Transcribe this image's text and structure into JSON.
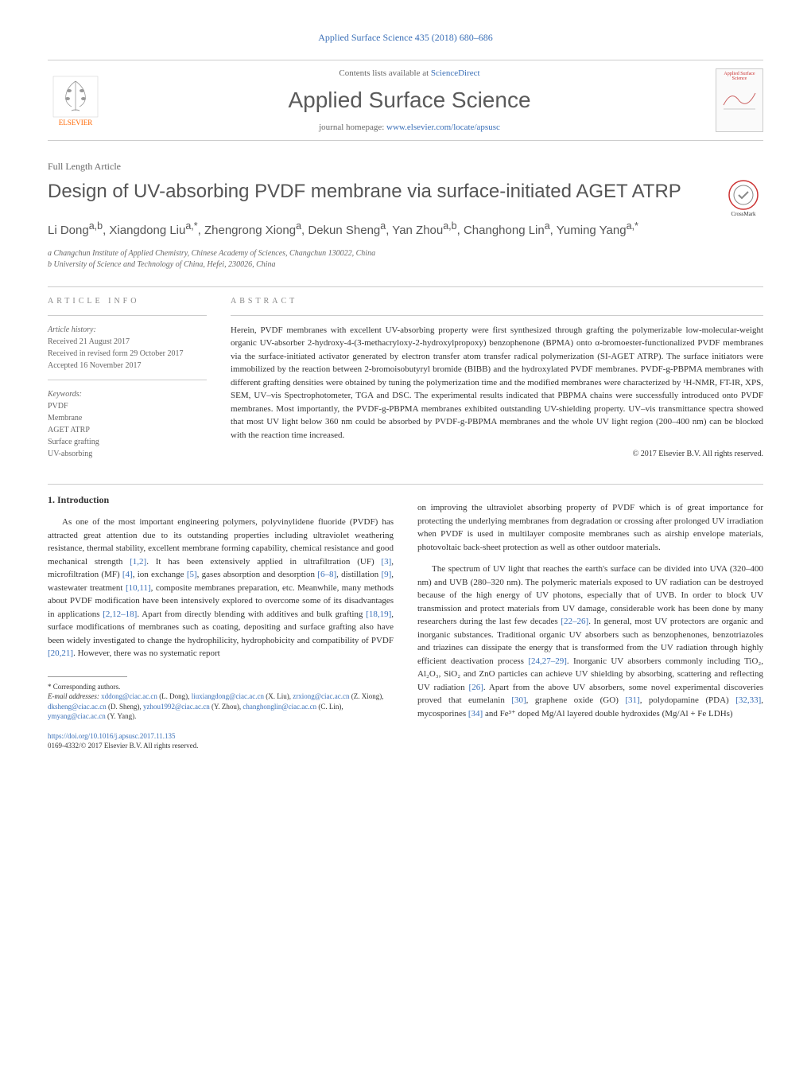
{
  "colors": {
    "link": "#3a6fb7",
    "text": "#333333",
    "muted": "#666666",
    "elsevier_orange": "#ff6600",
    "cover_red": "#cc3333",
    "background": "#ffffff",
    "border": "#cccccc"
  },
  "top_header": "Applied Surface Science 435 (2018) 680–686",
  "journal_box": {
    "contents_line_pre": "Contents lists available at ",
    "contents_line_link": "ScienceDirect",
    "title": "Applied Surface Science",
    "homepage_pre": "journal homepage: ",
    "homepage_url": "www.elsevier.com/locate/apsusc",
    "publisher": "ELSEVIER",
    "cover_title": "Applied Surface Science"
  },
  "article_type": "Full Length Article",
  "article_title": "Design of UV-absorbing PVDF membrane via surface-initiated AGET ATRP",
  "crossmark_label": "CrossMark",
  "authors_html": "Li Dong<sup>a,b</sup>, Xiangdong Liu<sup>a,*</sup>, Zhengrong Xiong<sup>a</sup>, Dekun Sheng<sup>a</sup>, Yan Zhou<sup>a,b</sup>, Changhong Lin<sup>a</sup>, Yuming Yang<sup>a,*</sup>",
  "affiliations": [
    "a Changchun Institute of Applied Chemistry, Chinese Academy of Sciences, Changchun 130022, China",
    "b University of Science and Technology of China, Hefei, 230026, China"
  ],
  "info_label": "ARTICLE INFO",
  "abstract_label": "ABSTRACT",
  "article_info": {
    "history_head": "Article history:",
    "history": [
      "Received 21 August 2017",
      "Received in revised form 29 October 2017",
      "Accepted 16 November 2017"
    ],
    "keywords_head": "Keywords:",
    "keywords": [
      "PVDF",
      "Membrane",
      "AGET ATRP",
      "Surface grafting",
      "UV-absorbing"
    ]
  },
  "abstract_text": "Herein, PVDF membranes with excellent UV-absorbing property were first synthesized through grafting the polymerizable low-molecular-weight organic UV-absorber 2-hydroxy-4-(3-methacryloxy-2-hydroxylpropoxy) benzophenone (BPMA) onto α-bromoester-functionalized PVDF membranes via the surface-initiated activator generated by electron transfer atom transfer radical polymerization (SI-AGET ATRP). The surface initiators were immobilized by the reaction between 2-bromoisobutyryl bromide (BIBB) and the hydroxylated PVDF membranes. PVDF-g-PBPMA membranes with different grafting densities were obtained by tuning the polymerization time and the modified membranes were characterized by ¹H-NMR, FT-IR, XPS, SEM, UV–vis Spectrophotometer, TGA and DSC. The experimental results indicated that PBPMA chains were successfully introduced onto PVDF membranes. Most importantly, the PVDF-g-PBPMA membranes exhibited outstanding UV-shielding property. UV–vis transmittance spectra showed that most UV light below 360 nm could be absorbed by PVDF-g-PBPMA membranes and the whole UV light region (200–400 nm) can be blocked with the reaction time increased.",
  "abstract_copyright": "© 2017 Elsevier B.V. All rights reserved.",
  "body": {
    "heading": "1. Introduction",
    "col1_p1": "As one of the most important engineering polymers, polyvinylidene fluoride (PVDF) has attracted great attention due to its outstanding properties including ultraviolet weathering resistance, thermal stability, excellent membrane forming capability, chemical resistance and good mechanical strength [1,2]. It has been extensively applied in ultrafiltration (UF) [3], microfiltration (MF) [4], ion exchange [5], gases absorption and desorption [6–8], distillation [9], wastewater treatment [10,11], composite membranes preparation, etc. Meanwhile, many methods about PVDF modification have been intensively explored to overcome some of its disadvantages in applications [2,12–18]. Apart from directly blending with additives and bulk grafting [18,19], surface modifications of membranes such as coating, depositing and surface grafting also have been widely investigated to change the hydrophilicity, hydrophobicity and compatibility of PVDF [20,21]. However, there was no systematic report",
    "col2_p1": "on improving the ultraviolet absorbing property of PVDF which is of great importance for protecting the underlying membranes from degradation or crossing after prolonged UV irradiation when PVDF is used in multilayer composite membranes such as airship envelope materials, photovoltaic back-sheet protection as well as other outdoor materials.",
    "col2_p2": "The spectrum of UV light that reaches the earth's surface can be divided into UVA (320–400 nm) and UVB (280–320 nm). The polymeric materials exposed to UV radiation can be destroyed because of the high energy of UV photons, especially that of UVB. In order to block UV transmission and protect materials from UV damage, considerable work has been done by many researchers during the last few decades [22–26]. In general, most UV protectors are organic and inorganic substances. Traditional organic UV absorbers such as benzophenones, benzotriazoles and triazines can dissipate the energy that is transformed from the UV radiation through highly efficient deactivation process [24,27–29]. Inorganic UV absorbers commonly including TiO₂, Al₂O₃, SiO₂ and ZnO particles can achieve UV shielding by absorbing, scattering and reflecting UV radiation [26]. Apart from the above UV absorbers, some novel experimental discoveries proved that eumelanin [30], graphene oxide (GO) [31], polydopamine (PDA) [32,33], mycosporines [34] and Fe³⁺ doped Mg/Al layered double hydroxides (Mg/Al + Fe LDHs)"
  },
  "footnotes": {
    "corresponding": "* Corresponding authors.",
    "email_label": "E-mail addresses:",
    "emails_line": "xddong@ciac.ac.cn (L. Dong), liuxiangdong@ciac.ac.cn (X. Liu), zrxiong@ciac.ac.cn (Z. Xiong), dksheng@ciac.ac.cn (D. Sheng), yzhou1992@ciac.ac.cn (Y. Zhou), changhonglin@ciac.ac.cn (C. Lin), ymyang@ciac.ac.cn (Y. Yang)."
  },
  "doi": {
    "url": "https://doi.org/10.1016/j.apsusc.2017.11.135",
    "issn_line": "0169-4332/© 2017 Elsevier B.V. All rights reserved."
  }
}
